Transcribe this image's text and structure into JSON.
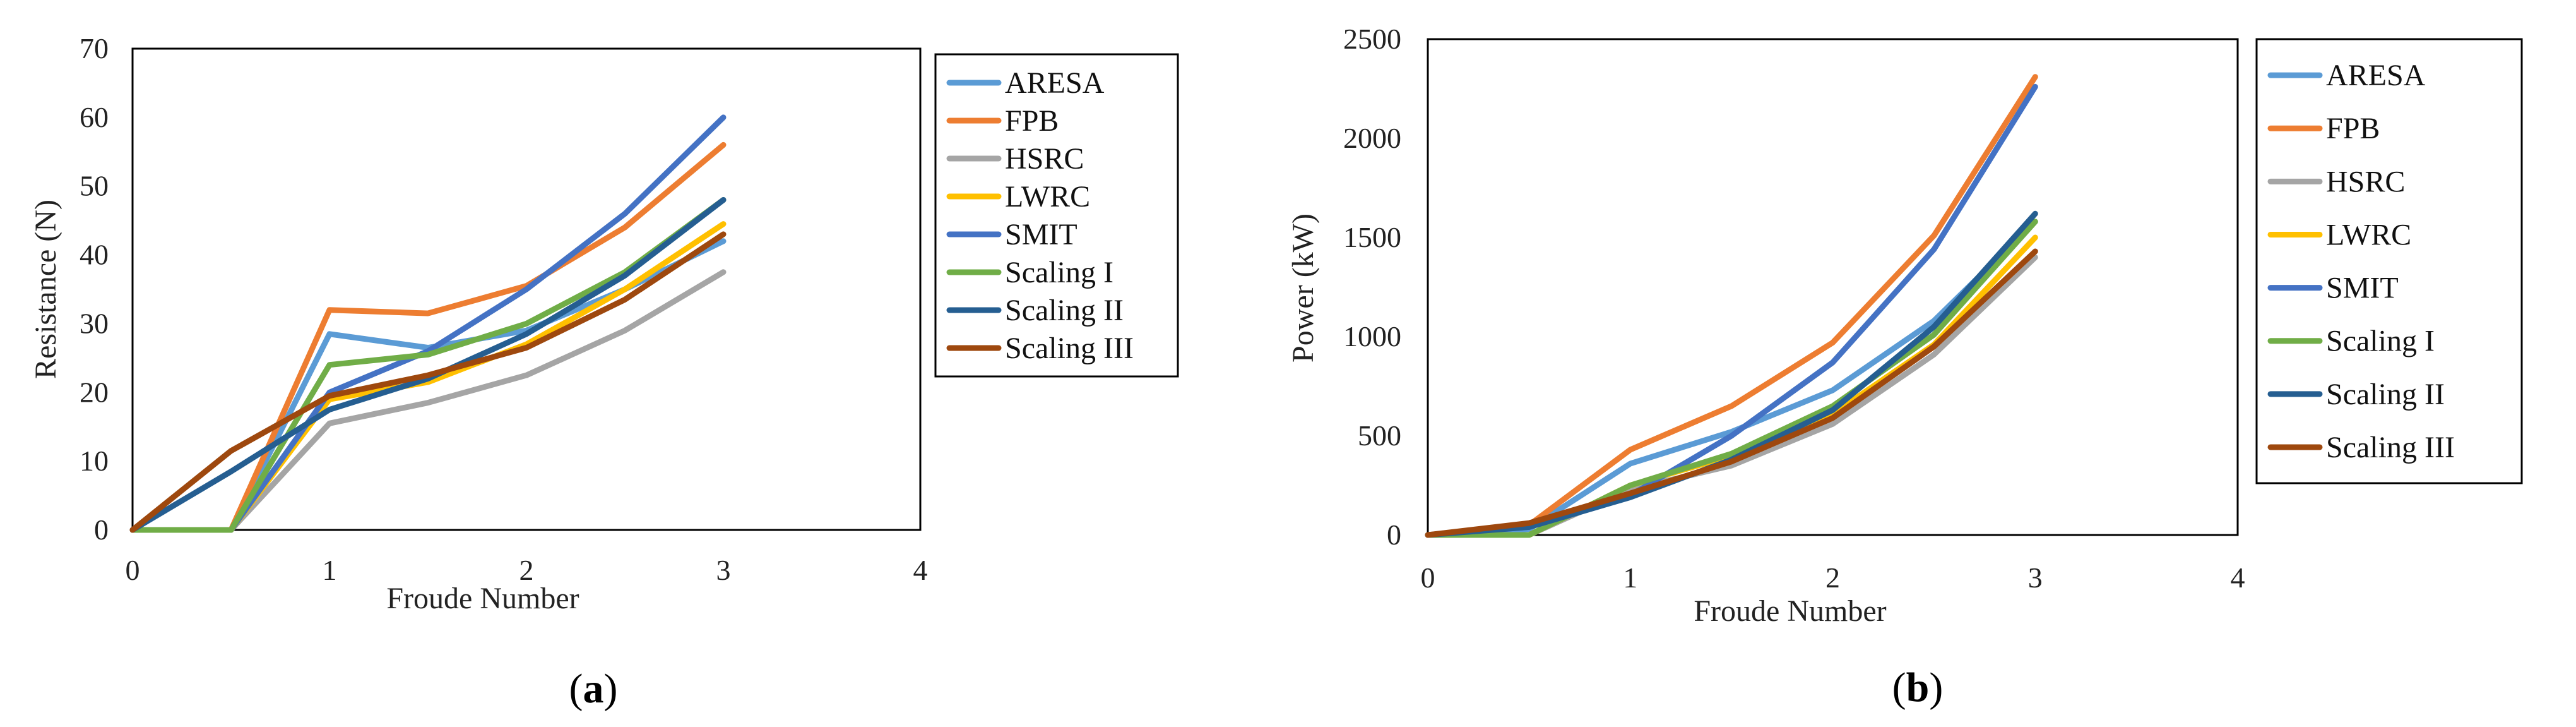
{
  "chart_data": [
    {
      "type": "line",
      "panel": "a",
      "caption_open": "(",
      "caption_letter": "a",
      "caption_close": ")",
      "title": "",
      "xlabel": "Froude Number",
      "ylabel": "Resistance (N)",
      "xlim": [
        0,
        4
      ],
      "ylim": [
        0,
        70
      ],
      "x_ticks": [
        0,
        1,
        2,
        3,
        4
      ],
      "y_ticks": [
        0,
        10,
        20,
        30,
        40,
        50,
        60,
        70
      ],
      "grid": false,
      "legend_position": "right",
      "x": [
        0,
        0.5,
        1,
        1.5,
        2,
        2.5,
        3
      ],
      "series": [
        {
          "name": "ARESA",
          "color": "#5B9BD5",
          "values": [
            0,
            0,
            28.5,
            26.5,
            29,
            35,
            42
          ]
        },
        {
          "name": "FPB",
          "color": "#ED7D31",
          "values": [
            0,
            0,
            32,
            31.5,
            35.5,
            44,
            56
          ]
        },
        {
          "name": "HSRC",
          "color": "#A5A5A5",
          "values": [
            0,
            0,
            15.5,
            18.5,
            22.5,
            29,
            37.5
          ]
        },
        {
          "name": "LWRC",
          "color": "#FFC000",
          "values": [
            0,
            0,
            19,
            21.5,
            27,
            35,
            44.5
          ]
        },
        {
          "name": "SMIT",
          "color": "#4472C4",
          "values": [
            0,
            0,
            20,
            26,
            35,
            46,
            60
          ]
        },
        {
          "name": "Scaling I",
          "color": "#70AD47",
          "values": [
            0,
            0,
            24,
            25.5,
            30,
            37.5,
            48
          ]
        },
        {
          "name": "Scaling II",
          "color": "#255E91",
          "values": [
            0,
            8.5,
            17.5,
            22,
            28.5,
            37,
            48
          ]
        },
        {
          "name": "Scaling III",
          "color": "#9E480E",
          "values": [
            0,
            11.5,
            19.5,
            22.5,
            26.5,
            33.5,
            43
          ]
        }
      ]
    },
    {
      "type": "line",
      "panel": "b",
      "caption_open": "(",
      "caption_letter": "b",
      "caption_close": ")",
      "title": "",
      "xlabel": "Froude Number",
      "ylabel": "Power (kW)",
      "xlim": [
        0,
        4
      ],
      "ylim": [
        0,
        2500
      ],
      "x_ticks": [
        0,
        1,
        2,
        3,
        4
      ],
      "y_ticks": [
        0,
        500,
        1000,
        1500,
        2000,
        2500
      ],
      "grid": false,
      "legend_position": "right",
      "x": [
        0,
        0.5,
        1,
        1.5,
        2,
        2.5,
        3
      ],
      "series": [
        {
          "name": "ARESA",
          "color": "#5B9BD5",
          "values": [
            0,
            30,
            360,
            520,
            730,
            1080,
            1580
          ]
        },
        {
          "name": "FPB",
          "color": "#ED7D31",
          "values": [
            0,
            50,
            430,
            650,
            970,
            1510,
            2310
          ]
        },
        {
          "name": "HSRC",
          "color": "#A5A5A5",
          "values": [
            0,
            0,
            230,
            350,
            560,
            910,
            1400
          ]
        },
        {
          "name": "LWRC",
          "color": "#FFC000",
          "values": [
            0,
            0,
            250,
            400,
            610,
            960,
            1500
          ]
        },
        {
          "name": "SMIT",
          "color": "#4472C4",
          "values": [
            0,
            40,
            200,
            500,
            870,
            1440,
            2260
          ]
        },
        {
          "name": "Scaling I",
          "color": "#70AD47",
          "values": [
            0,
            0,
            250,
            410,
            650,
            1010,
            1580
          ]
        },
        {
          "name": "Scaling II",
          "color": "#255E91",
          "values": [
            0,
            40,
            190,
            380,
            630,
            1050,
            1620
          ]
        },
        {
          "name": "Scaling III",
          "color": "#9E480E",
          "values": [
            0,
            60,
            210,
            370,
            590,
            950,
            1430
          ]
        }
      ]
    }
  ]
}
